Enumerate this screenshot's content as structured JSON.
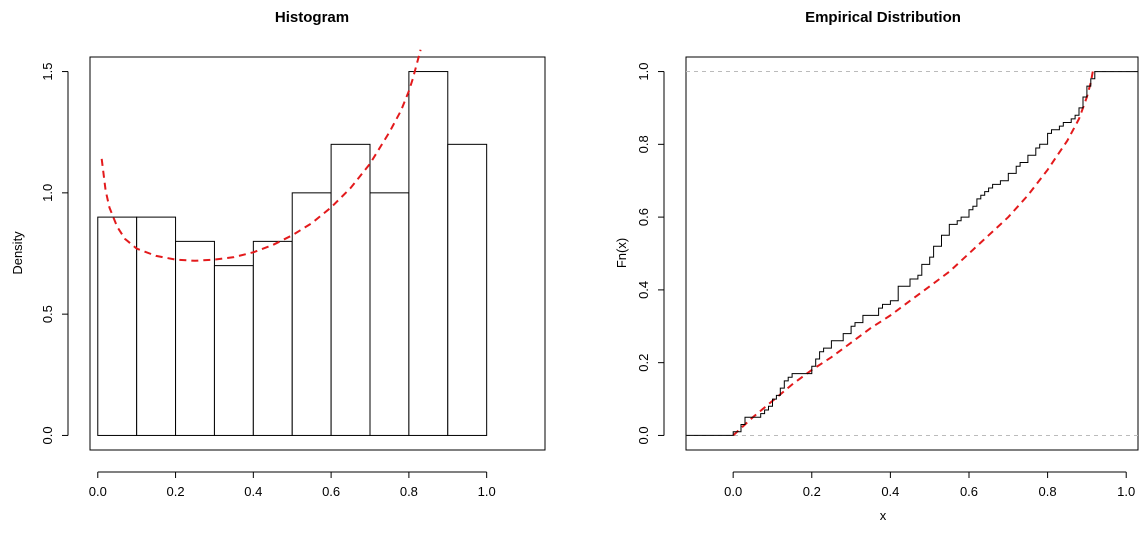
{
  "colors": {
    "fit_curve": "#e31a1c",
    "axis": "#000000",
    "guide": "#bbbbbb"
  },
  "chart_data": [
    {
      "type": "bar",
      "title": "Histogram",
      "xlabel": "",
      "ylabel": "Density",
      "xlim": [
        -0.02,
        1.15
      ],
      "ylim": [
        -0.06,
        1.56
      ],
      "bins": [
        [
          0.0,
          0.1,
          0.9
        ],
        [
          0.1,
          0.2,
          0.9
        ],
        [
          0.2,
          0.3,
          0.8
        ],
        [
          0.3,
          0.4,
          0.7
        ],
        [
          0.4,
          0.5,
          0.8
        ],
        [
          0.5,
          0.6,
          1.0
        ],
        [
          0.6,
          0.7,
          1.2
        ],
        [
          0.7,
          0.8,
          1.0
        ],
        [
          0.8,
          0.9,
          1.5
        ],
        [
          0.9,
          1.0,
          1.2
        ]
      ],
      "fit_curve": {
        "style": "dashed",
        "x": [
          0.01,
          0.02,
          0.03,
          0.05,
          0.07,
          0.1,
          0.15,
          0.2,
          0.25,
          0.3,
          0.35,
          0.4,
          0.45,
          0.5,
          0.55,
          0.6,
          0.65,
          0.7,
          0.75,
          0.78,
          0.8,
          0.81,
          0.82,
          0.83
        ],
        "y": [
          1.14,
          1.01,
          0.94,
          0.86,
          0.81,
          0.77,
          0.74,
          0.725,
          0.72,
          0.725,
          0.735,
          0.755,
          0.785,
          0.825,
          0.875,
          0.94,
          1.02,
          1.12,
          1.25,
          1.34,
          1.42,
          1.47,
          1.53,
          1.59
        ]
      },
      "xticks": [
        "0.0",
        "0.2",
        "0.4",
        "0.6",
        "0.8",
        "1.0"
      ],
      "xtick_values": [
        0,
        0.2,
        0.4,
        0.6,
        0.8,
        1.0
      ],
      "yticks": [
        "0.0",
        "0.5",
        "1.0",
        "1.5"
      ],
      "ytick_values": [
        0,
        0.5,
        1.0,
        1.5
      ]
    },
    {
      "type": "line",
      "title": "Empirical Distribution",
      "xlabel": "x",
      "ylabel": "Fn(x)",
      "xlim": [
        -0.12,
        1.03
      ],
      "ylim": [
        -0.04,
        1.04
      ],
      "guides": [
        0,
        1
      ],
      "ecdf": {
        "style": "step",
        "x": [
          0.0,
          0.02,
          0.03,
          0.07,
          0.08,
          0.09,
          0.1,
          0.11,
          0.12,
          0.13,
          0.14,
          0.15,
          0.2,
          0.21,
          0.22,
          0.23,
          0.25,
          0.28,
          0.3,
          0.31,
          0.33,
          0.37,
          0.38,
          0.4,
          0.42,
          0.45,
          0.47,
          0.48,
          0.5,
          0.51,
          0.53,
          0.55,
          0.57,
          0.58,
          0.6,
          0.61,
          0.62,
          0.63,
          0.64,
          0.65,
          0.66,
          0.68,
          0.7,
          0.72,
          0.73,
          0.75,
          0.77,
          0.78,
          0.8,
          0.81,
          0.83,
          0.84,
          0.86,
          0.87,
          0.88,
          0.89,
          0.9,
          0.91,
          0.92
        ],
        "y": [
          0.01,
          0.03,
          0.05,
          0.06,
          0.07,
          0.08,
          0.1,
          0.11,
          0.13,
          0.15,
          0.16,
          0.17,
          0.19,
          0.21,
          0.23,
          0.24,
          0.26,
          0.28,
          0.3,
          0.31,
          0.33,
          0.35,
          0.36,
          0.37,
          0.41,
          0.43,
          0.44,
          0.47,
          0.49,
          0.52,
          0.55,
          0.58,
          0.59,
          0.6,
          0.62,
          0.63,
          0.65,
          0.66,
          0.67,
          0.68,
          0.69,
          0.7,
          0.72,
          0.74,
          0.75,
          0.77,
          0.79,
          0.8,
          0.83,
          0.84,
          0.85,
          0.86,
          0.87,
          0.88,
          0.9,
          0.93,
          0.96,
          0.98,
          1.0
        ],
        "x_start": -0.12,
        "x_end": 1.03
      },
      "fit_curve": {
        "style": "dashed",
        "x": [
          0.0,
          0.05,
          0.1,
          0.15,
          0.2,
          0.25,
          0.3,
          0.35,
          0.4,
          0.45,
          0.5,
          0.55,
          0.6,
          0.65,
          0.7,
          0.75,
          0.8,
          0.85,
          0.88,
          0.9,
          0.91,
          0.915
        ],
        "y": [
          0.0,
          0.05,
          0.095,
          0.14,
          0.18,
          0.215,
          0.255,
          0.295,
          0.33,
          0.37,
          0.41,
          0.45,
          0.5,
          0.55,
          0.6,
          0.66,
          0.73,
          0.81,
          0.87,
          0.93,
          0.97,
          1.0
        ]
      },
      "xticks": [
        "0.0",
        "0.2",
        "0.4",
        "0.6",
        "0.8",
        "1.0"
      ],
      "xtick_values": [
        0,
        0.2,
        0.4,
        0.6,
        0.8,
        1.0
      ],
      "yticks": [
        "0.0",
        "0.2",
        "0.4",
        "0.6",
        "0.8",
        "1.0"
      ],
      "ytick_values": [
        0,
        0.2,
        0.4,
        0.6,
        0.8,
        1.0
      ]
    }
  ]
}
